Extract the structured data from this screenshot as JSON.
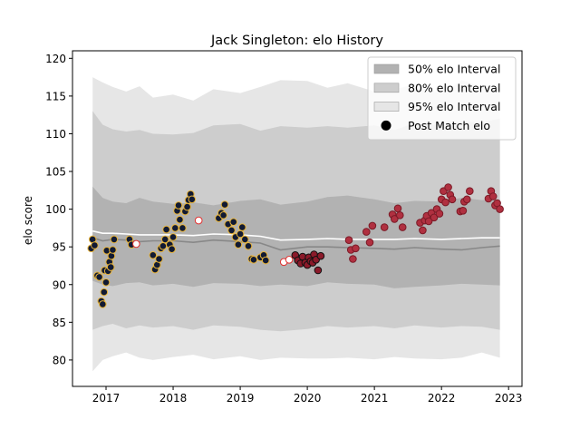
{
  "chart_data": {
    "type": "scatter",
    "title": "Jack Singleton: elo History",
    "xlabel": "",
    "ylabel": "elo score",
    "xlim": [
      2016.5,
      2023.2
    ],
    "ylim": [
      76.5,
      121
    ],
    "x_ticks": [
      2017,
      2018,
      2019,
      2020,
      2021,
      2022,
      2023
    ],
    "y_ticks": [
      80,
      85,
      90,
      95,
      100,
      105,
      110,
      115,
      120
    ],
    "grid": false,
    "legend": {
      "placement": "top-right",
      "entries": [
        "50% elo Interval",
        "80% elo Interval",
        "95% elo Interval",
        "Post Match elo"
      ]
    },
    "colors": {
      "band50": "#b2b2b2",
      "band80": "#cdcdcd",
      "band95": "#e6e6e6",
      "median_line": "#888888",
      "mean_line": "#ffffff",
      "point_fill_dark": "#111a33",
      "point_fill_red": "#8b1a2a",
      "point_fill_white": "#ffffff",
      "edge_gold": "#e8b43a",
      "edge_red": "#e0302f"
    },
    "bands": {
      "x": [
        2016.8,
        2016.95,
        2017.1,
        2017.3,
        2017.5,
        2017.7,
        2018.0,
        2018.3,
        2018.6,
        2019.0,
        2019.3,
        2019.6,
        2020.0,
        2020.3,
        2020.6,
        2021.0,
        2021.3,
        2021.6,
        2022.0,
        2022.3,
        2022.6,
        2022.87
      ],
      "p95_upper": [
        117.5,
        116.8,
        116.2,
        115.6,
        116.3,
        114.8,
        115.2,
        114.4,
        115.9,
        115.4,
        116.2,
        117.1,
        117.0,
        116.1,
        116.7,
        115.6,
        115.9,
        116.5,
        115.3,
        117.1,
        116.2,
        116.0
      ],
      "p80_upper": [
        113.0,
        111.2,
        110.6,
        110.3,
        110.5,
        110.0,
        109.9,
        110.1,
        111.1,
        111.3,
        110.4,
        111.0,
        110.8,
        111.0,
        110.8,
        111.1,
        110.5,
        111.4,
        111.1,
        111.6,
        111.5,
        112.0
      ],
      "p50_upper": [
        103.0,
        101.5,
        101.0,
        100.8,
        101.5,
        101.0,
        100.7,
        100.9,
        100.5,
        101.1,
        101.3,
        100.6,
        101.0,
        101.6,
        101.8,
        101.3,
        100.8,
        101.1,
        101.0,
        101.5,
        101.2,
        101.3
      ],
      "median": [
        96.2,
        95.8,
        96.0,
        95.9,
        95.7,
        95.8,
        95.8,
        95.6,
        95.9,
        95.7,
        95.5,
        94.6,
        95.0,
        95.0,
        94.9,
        94.8,
        94.7,
        94.9,
        94.7,
        94.6,
        94.9,
        95.1
      ],
      "mean": [
        97.1,
        96.8,
        96.8,
        96.7,
        96.6,
        96.6,
        96.6,
        96.5,
        96.7,
        96.6,
        96.4,
        95.9,
        96.0,
        96.1,
        96.0,
        96.0,
        96.0,
        96.1,
        96.0,
        96.1,
        96.2,
        96.2
      ],
      "p50_lower": [
        90.5,
        90.0,
        89.8,
        90.2,
        90.3,
        89.9,
        90.1,
        89.7,
        90.2,
        90.1,
        89.8,
        90.0,
        89.8,
        90.3,
        90.1,
        90.0,
        89.5,
        89.7,
        89.9,
        90.1,
        90.0,
        89.9
      ],
      "p80_lower": [
        84.0,
        84.5,
        84.8,
        84.2,
        84.6,
        84.3,
        84.5,
        84.0,
        84.6,
        84.4,
        84.0,
        83.8,
        84.1,
        84.5,
        84.3,
        84.5,
        84.2,
        84.6,
        84.3,
        84.5,
        84.4,
        84.0
      ],
      "p95_lower": [
        78.5,
        80.0,
        80.5,
        81.0,
        80.3,
        80.0,
        80.4,
        80.7,
        80.1,
        80.5,
        80.0,
        80.3,
        80.2,
        80.2,
        80.3,
        80.1,
        80.4,
        80.2,
        80.1,
        80.3,
        81.0,
        80.3
      ]
    },
    "series": [
      {
        "style": "dark-gold",
        "points": [
          [
            2016.78,
            94.8
          ],
          [
            2016.8,
            96.0
          ],
          [
            2016.83,
            95.2
          ],
          [
            2016.87,
            91.2
          ],
          [
            2016.9,
            91.0
          ],
          [
            2016.93,
            87.8
          ],
          [
            2016.95,
            87.4
          ],
          [
            2016.97,
            89.0
          ],
          [
            2016.98,
            91.9
          ],
          [
            2017.0,
            90.3
          ],
          [
            2017.01,
            94.5
          ],
          [
            2017.03,
            91.8
          ],
          [
            2017.05,
            93.0
          ],
          [
            2017.07,
            92.3
          ],
          [
            2017.08,
            93.8
          ],
          [
            2017.1,
            94.6
          ],
          [
            2017.12,
            96.0
          ],
          [
            2017.35,
            96.0
          ],
          [
            2017.38,
            95.3
          ],
          [
            2017.7,
            93.9
          ],
          [
            2017.73,
            92.0
          ],
          [
            2017.76,
            92.6
          ],
          [
            2017.79,
            93.4
          ],
          [
            2017.82,
            94.8
          ],
          [
            2017.85,
            95.1
          ],
          [
            2017.88,
            96.0
          ],
          [
            2017.9,
            97.3
          ],
          [
            2017.95,
            95.3
          ],
          [
            2017.98,
            94.7
          ],
          [
            2018.0,
            96.3
          ],
          [
            2018.03,
            97.5
          ],
          [
            2018.06,
            99.8
          ],
          [
            2018.08,
            100.5
          ],
          [
            2018.1,
            98.6
          ],
          [
            2018.14,
            97.5
          ],
          [
            2018.18,
            99.7
          ],
          [
            2018.21,
            100.3
          ],
          [
            2018.23,
            101.2
          ],
          [
            2018.26,
            102.0
          ],
          [
            2018.28,
            101.3
          ],
          [
            2018.68,
            98.8
          ],
          [
            2018.72,
            99.5
          ],
          [
            2018.75,
            99.2
          ],
          [
            2018.77,
            100.6
          ],
          [
            2018.82,
            98.0
          ],
          [
            2018.87,
            97.2
          ],
          [
            2018.9,
            98.3
          ],
          [
            2018.93,
            96.3
          ],
          [
            2018.97,
            95.3
          ],
          [
            2019.0,
            96.7
          ],
          [
            2019.03,
            97.6
          ],
          [
            2019.07,
            96.0
          ],
          [
            2019.12,
            95.1
          ],
          [
            2019.17,
            93.4
          ],
          [
            2019.2,
            93.3
          ],
          [
            2019.3,
            93.6
          ],
          [
            2019.35,
            93.9
          ],
          [
            2019.38,
            93.2
          ]
        ]
      },
      {
        "style": "white-red",
        "points": [
          [
            2017.45,
            95.4
          ],
          [
            2018.38,
            98.5
          ],
          [
            2019.65,
            93.0
          ],
          [
            2019.73,
            93.3
          ]
        ]
      },
      {
        "style": "darkred-black",
        "points": [
          [
            2019.82,
            93.9
          ],
          [
            2019.86,
            93.2
          ],
          [
            2019.9,
            92.8
          ],
          [
            2019.93,
            93.7
          ],
          [
            2019.97,
            92.9
          ],
          [
            2020.0,
            92.6
          ],
          [
            2020.02,
            93.6
          ],
          [
            2020.05,
            93.1
          ],
          [
            2020.08,
            92.9
          ],
          [
            2020.1,
            94.0
          ],
          [
            2020.13,
            93.3
          ],
          [
            2020.16,
            91.9
          ],
          [
            2020.2,
            93.8
          ]
        ]
      },
      {
        "style": "red-darkred",
        "points": [
          [
            2020.62,
            95.9
          ],
          [
            2020.65,
            94.6
          ],
          [
            2020.68,
            93.4
          ],
          [
            2020.72,
            94.8
          ],
          [
            2020.88,
            97.0
          ],
          [
            2020.93,
            95.6
          ],
          [
            2020.97,
            97.8
          ],
          [
            2021.15,
            97.6
          ],
          [
            2021.27,
            99.3
          ],
          [
            2021.3,
            98.7
          ],
          [
            2021.35,
            100.1
          ],
          [
            2021.38,
            99.2
          ],
          [
            2021.42,
            97.6
          ],
          [
            2021.68,
            98.2
          ],
          [
            2021.72,
            97.2
          ],
          [
            2021.75,
            98.5
          ],
          [
            2021.78,
            99.1
          ],
          [
            2021.81,
            98.4
          ],
          [
            2021.85,
            99.5
          ],
          [
            2021.89,
            98.9
          ],
          [
            2021.93,
            100.0
          ],
          [
            2021.97,
            99.4
          ],
          [
            2022.0,
            101.3
          ],
          [
            2022.03,
            102.4
          ],
          [
            2022.06,
            100.9
          ],
          [
            2022.1,
            102.9
          ],
          [
            2022.13,
            101.9
          ],
          [
            2022.16,
            101.3
          ],
          [
            2022.28,
            99.7
          ],
          [
            2022.32,
            99.8
          ],
          [
            2022.34,
            101.0
          ],
          [
            2022.38,
            101.3
          ],
          [
            2022.42,
            102.4
          ],
          [
            2022.7,
            101.4
          ],
          [
            2022.74,
            102.4
          ],
          [
            2022.77,
            101.7
          ],
          [
            2022.8,
            100.5
          ],
          [
            2022.83,
            100.8
          ],
          [
            2022.87,
            100.0
          ]
        ]
      }
    ]
  }
}
